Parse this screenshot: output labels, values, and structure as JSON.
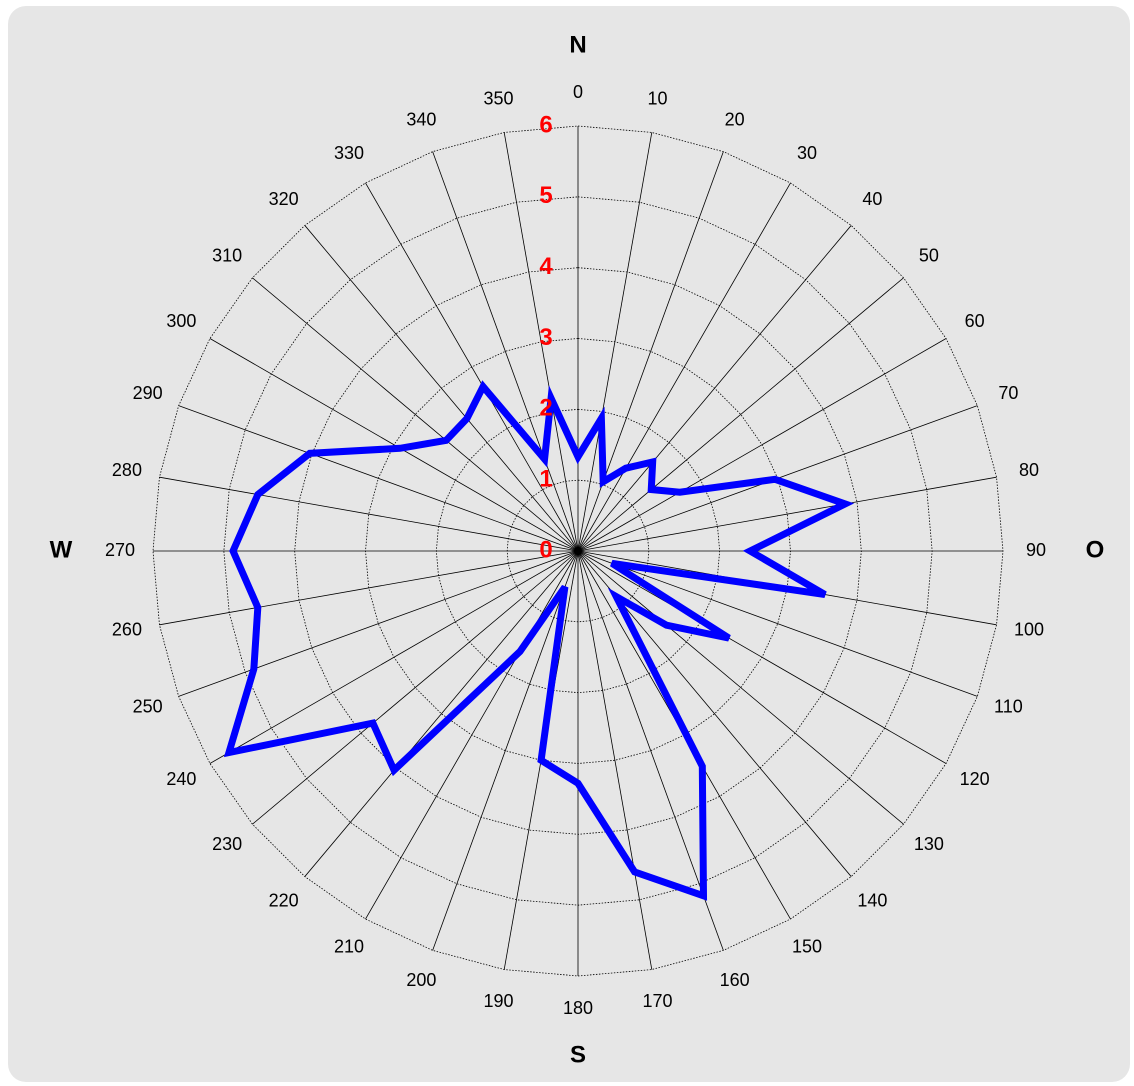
{
  "chart_data": {
    "type": "radar",
    "categories": [
      "0",
      "10",
      "20",
      "30",
      "40",
      "50",
      "60",
      "70",
      "80",
      "90",
      "100",
      "110",
      "120",
      "130",
      "140",
      "150",
      "160",
      "170",
      "180",
      "190",
      "200",
      "210",
      "220",
      "230",
      "240",
      "250",
      "260",
      "270",
      "280",
      "290",
      "300",
      "310",
      "320",
      "330",
      "340",
      "350"
    ],
    "values": [
      1.33,
      1.9,
      1.04,
      1.35,
      1.64,
      1.35,
      1.66,
      2.96,
      3.83,
      2.43,
      3.54,
      0.51,
      2.46,
      1.63,
      0.84,
      3.51,
      5.18,
      4.6,
      3.28,
      3.0,
      0.54,
      1.64,
      4.04,
      3.78,
      5.69,
      4.87,
      4.59,
      4.87,
      4.59,
      4.03,
      2.9,
      2.43,
      2.44,
      2.68,
      1.38,
      2.19
    ],
    "color": "#0000ff",
    "rlim": [
      0,
      6
    ],
    "rticks": [
      0,
      1,
      2,
      3,
      4,
      5,
      6
    ],
    "compass_labels": [
      "N",
      "O",
      "S",
      "W"
    ]
  }
}
